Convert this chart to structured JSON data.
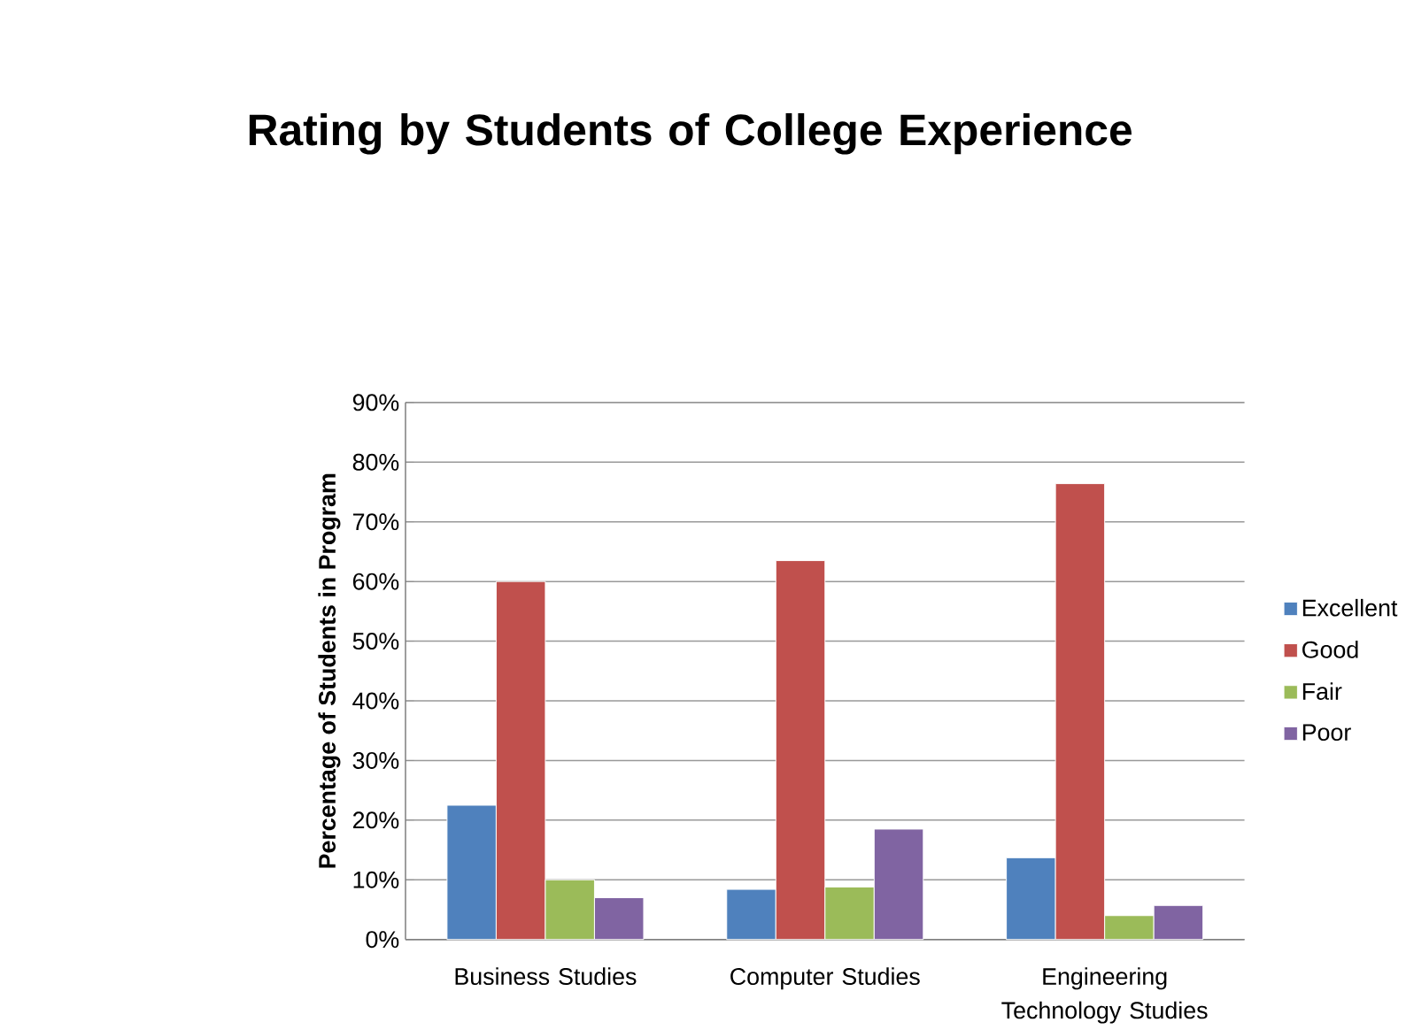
{
  "chart_data": {
    "type": "bar",
    "title": "Rating by Students of College Experience",
    "ylabel": "Percentage of Students in Program",
    "categories": [
      "Business Studies",
      "Computer Studies",
      "Engineering Technology Studies"
    ],
    "series": [
      {
        "name": "Excellent",
        "color": "#4f81bd",
        "values": [
          22.5,
          8.4,
          13.7
        ]
      },
      {
        "name": "Good",
        "color": "#c0504d",
        "values": [
          60,
          63.5,
          76.4
        ]
      },
      {
        "name": "Fair",
        "color": "#9bbb59",
        "values": [
          10,
          8.8,
          4
        ]
      },
      {
        "name": "Poor",
        "color": "#8064a2",
        "values": [
          7,
          18.5,
          5.7
        ]
      }
    ],
    "ylim": [
      0,
      90
    ],
    "yticks": [
      {
        "value": 0,
        "label": "0%"
      },
      {
        "value": 10,
        "label": "10%"
      },
      {
        "value": 20,
        "label": "20%"
      },
      {
        "value": 30,
        "label": "30%"
      },
      {
        "value": 40,
        "label": "40%"
      },
      {
        "value": 50,
        "label": "50%"
      },
      {
        "value": 60,
        "label": "60%"
      },
      {
        "value": 70,
        "label": "70%"
      },
      {
        "value": 80,
        "label": "80%"
      },
      {
        "value": 90,
        "label": "90%"
      }
    ],
    "grid": "y",
    "legend": "right"
  }
}
